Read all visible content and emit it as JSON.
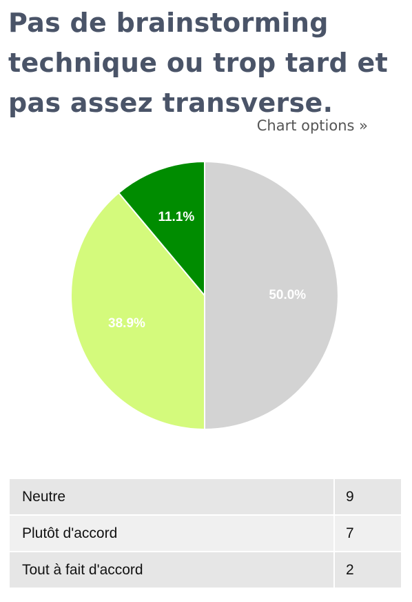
{
  "title": "Pas de brainstorming technique ou trop tard et pas assez transverse.",
  "chart_options_label": "Chart options »",
  "chart_data": {
    "type": "pie",
    "categories": [
      "Neutre",
      "Plutôt d'accord",
      "Tout à fait d'accord"
    ],
    "values": [
      9,
      7,
      2
    ],
    "percent_labels": [
      "50.0%",
      "38.9%",
      "11.1%"
    ],
    "colors": [
      "#d3d3d3",
      "#d4fa7c",
      "#008c00"
    ],
    "label_color": "#ffffff"
  },
  "legend": [
    {
      "label": "Neutre",
      "count": "9"
    },
    {
      "label": "Plutôt d'accord",
      "count": "7"
    },
    {
      "label": "Tout à fait d'accord",
      "count": "2"
    }
  ]
}
